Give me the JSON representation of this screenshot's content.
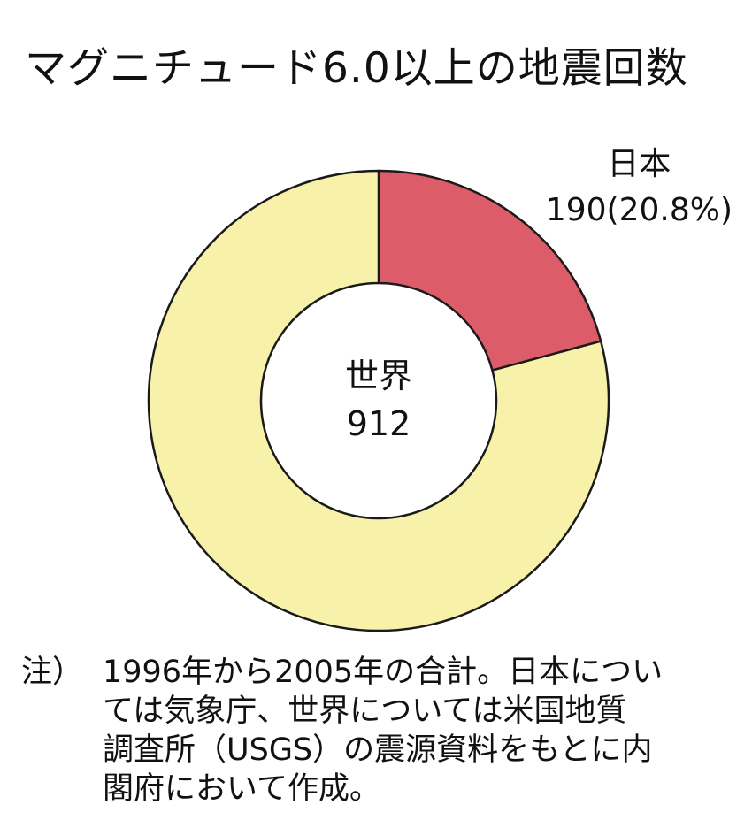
{
  "title": "マグニチュード6.0以上の地震回数",
  "center_label": {
    "name": "世界",
    "value": "912"
  },
  "japan_label": {
    "name": "日本",
    "value": "190(20.8%)"
  },
  "note": {
    "prefix": "注）",
    "lines": [
      "1996年から2005年の合計。日本につい",
      "ては気象庁、世界については米国地質",
      "調査所（USGS）の震源資料をもとに内",
      "閣府において作成。"
    ]
  },
  "chart_data": {
    "type": "pie",
    "donut": true,
    "title": "マグニチュード6.0以上の地震回数",
    "total": 912,
    "slices": [
      {
        "label": "日本",
        "value": 190,
        "percent": 20.8,
        "color": "#dc5c6a"
      },
      {
        "label": "世界",
        "value": 722,
        "percent": 79.2,
        "color": "#f7f1a9"
      }
    ]
  }
}
